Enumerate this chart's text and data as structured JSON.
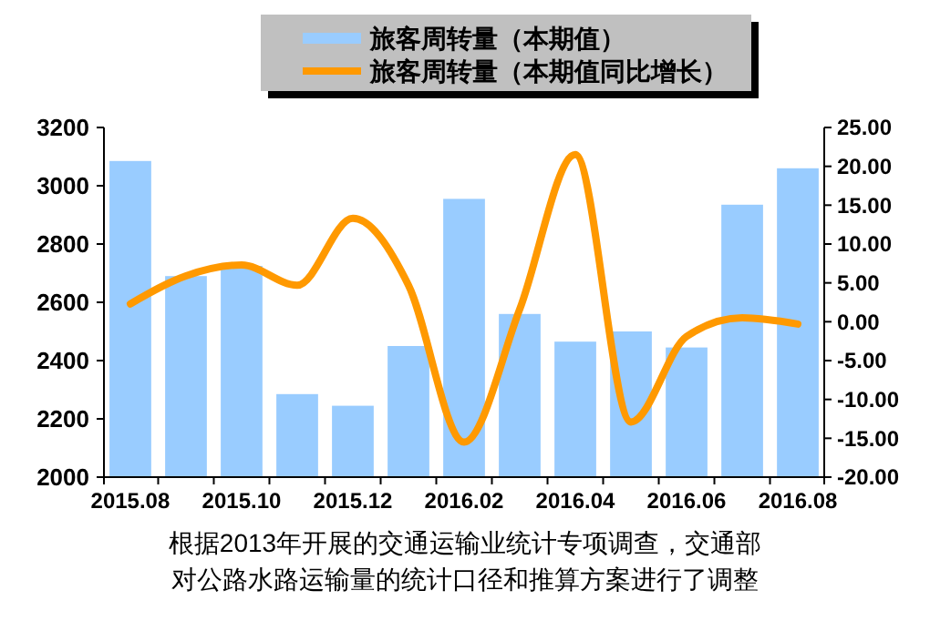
{
  "chart_data": {
    "type": "bar",
    "categories": [
      "2015.08",
      null,
      "2015.10",
      null,
      "2015.12",
      null,
      "2016.02",
      null,
      "2016.04",
      null,
      "2016.06",
      null,
      "2016.08"
    ],
    "series": [
      {
        "name": "旅客周转量（本期值）",
        "color": "#99ccff",
        "values": [
          3085,
          2690,
          2725,
          2285,
          2245,
          2450,
          2955,
          2560,
          2465,
          2500,
          2445,
          2935,
          3060
        ]
      },
      {
        "name": "旅客周转量（本期值同比增长）",
        "type": "line",
        "axis": "y2",
        "color": "#ff9900",
        "values": [
          2.3,
          5.9,
          7.3,
          4.7,
          13.3,
          4.7,
          -15.5,
          1.6,
          21.5,
          -12.9,
          -1.9,
          0.5,
          -0.3
        ]
      }
    ],
    "ylim": [
      2000,
      3200
    ],
    "yticks": [
      2000,
      2200,
      2400,
      2600,
      2800,
      3000,
      3200
    ],
    "y2lim": [
      -20,
      25
    ],
    "y2ticks": [
      {
        "value": -20,
        "label": "-20.00"
      },
      {
        "value": -15,
        "label": "-15.00"
      },
      {
        "value": -10,
        "label": "-10.00"
      },
      {
        "value": -5,
        "label": "-5.00"
      },
      {
        "value": 0,
        "label": "0.00"
      },
      {
        "value": 5,
        "label": "5.00"
      },
      {
        "value": 10,
        "label": "10.00"
      },
      {
        "value": 15,
        "label": "15.00"
      },
      {
        "value": 20,
        "label": "20.00"
      },
      {
        "value": 25,
        "label": "25.00"
      }
    ],
    "legend": "top",
    "grid": false,
    "annotations": [
      "根据2013年开展的交通运输业统计专项调查，交通部",
      "对公路水路运输量的统计口径和推算方案进行了调整"
    ]
  }
}
